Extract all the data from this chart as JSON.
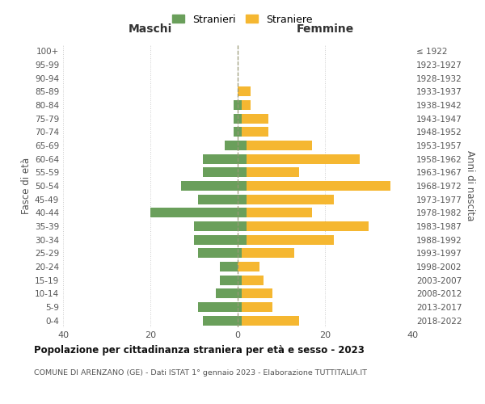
{
  "age_groups": [
    "100+",
    "95-99",
    "90-94",
    "85-89",
    "80-84",
    "75-79",
    "70-74",
    "65-69",
    "60-64",
    "55-59",
    "50-54",
    "45-49",
    "40-44",
    "35-39",
    "30-34",
    "25-29",
    "20-24",
    "15-19",
    "10-14",
    "5-9",
    "0-4"
  ],
  "birth_years": [
    "≤ 1922",
    "1923-1927",
    "1928-1932",
    "1933-1937",
    "1938-1942",
    "1943-1947",
    "1948-1952",
    "1953-1957",
    "1958-1962",
    "1963-1967",
    "1968-1972",
    "1973-1977",
    "1978-1982",
    "1983-1987",
    "1988-1992",
    "1993-1997",
    "1998-2002",
    "2003-2007",
    "2008-2012",
    "2013-2017",
    "2018-2022"
  ],
  "maschi_stranieri": [
    0,
    0,
    0,
    0,
    1,
    1,
    1,
    3,
    8,
    8,
    13,
    9,
    20,
    10,
    10,
    9,
    4,
    4,
    5,
    9,
    8
  ],
  "femmine_straniere": [
    0,
    0,
    0,
    3,
    3,
    7,
    7,
    17,
    28,
    14,
    35,
    22,
    17,
    30,
    22,
    13,
    5,
    6,
    8,
    8,
    14
  ],
  "femmine_stranieri": [
    0,
    0,
    0,
    0,
    1,
    1,
    1,
    2,
    2,
    2,
    2,
    2,
    2,
    2,
    2,
    1,
    0,
    1,
    1,
    1,
    1
  ],
  "maschi_straniere": [
    0,
    0,
    0,
    0,
    0,
    0,
    0,
    0,
    0,
    0,
    0,
    0,
    0,
    0,
    0,
    0,
    0,
    0,
    0,
    0,
    0
  ],
  "color_green": "#6a9f5b",
  "color_orange": "#f5b731",
  "title": "Popolazione per cittadinanza straniera per età e sesso - 2023",
  "subtitle": "COMUNE DI ARENZANO (GE) - Dati ISTAT 1° gennaio 2023 - Elaborazione TUTTITALIA.IT",
  "legend_stranieri": "Stranieri",
  "legend_straniere": "Straniere",
  "xlim": 40,
  "ylabel_left": "Fasce di età",
  "ylabel_right": "Anni di nascita",
  "label_maschi": "Maschi",
  "label_femmine": "Femmine",
  "bg_color": "#ffffff",
  "grid_color": "#cccccc",
  "dashed_color": "#999977"
}
